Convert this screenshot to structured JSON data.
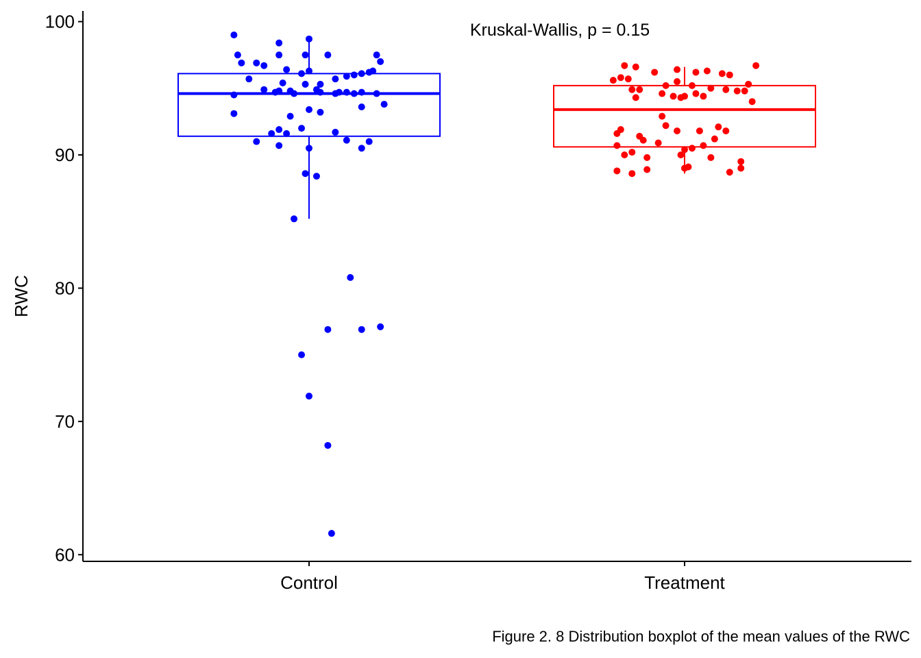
{
  "chart_data": {
    "type": "boxplot",
    "ylabel": "RWC",
    "xlabel": "",
    "ylim": [
      59.5,
      100.8
    ],
    "yticks": [
      60,
      70,
      80,
      90,
      100
    ],
    "categories": [
      "Control",
      "Treatment"
    ],
    "annotation": "Kruskal-Wallis, p = 0.15",
    "legend": "none",
    "grid": false,
    "groups": [
      {
        "name": "Control",
        "color": "#0000FF",
        "box": {
          "lower_whisker": 85.2,
          "q1": 91.4,
          "median": 94.6,
          "q3": 96.1,
          "upper_whisker": 98.7
        },
        "points": [
          [
            -0.2,
            99.0
          ],
          [
            -0.08,
            98.4
          ],
          [
            0.0,
            98.7
          ],
          [
            -0.19,
            97.5
          ],
          [
            -0.08,
            97.5
          ],
          [
            -0.01,
            97.5
          ],
          [
            0.05,
            97.5
          ],
          [
            0.18,
            97.5
          ],
          [
            0.19,
            97.0
          ],
          [
            -0.18,
            96.9
          ],
          [
            -0.14,
            96.9
          ],
          [
            -0.12,
            96.7
          ],
          [
            -0.06,
            96.4
          ],
          [
            -0.02,
            96.1
          ],
          [
            0.0,
            96.3
          ],
          [
            0.1,
            95.9
          ],
          [
            0.12,
            96.0
          ],
          [
            0.14,
            96.1
          ],
          [
            0.16,
            96.2
          ],
          [
            0.17,
            96.3
          ],
          [
            -0.16,
            95.7
          ],
          [
            -0.07,
            95.4
          ],
          [
            -0.01,
            95.3
          ],
          [
            0.03,
            95.3
          ],
          [
            0.07,
            95.7
          ],
          [
            -0.12,
            94.9
          ],
          [
            -0.09,
            94.7
          ],
          [
            -0.08,
            94.8
          ],
          [
            -0.05,
            94.8
          ],
          [
            -0.04,
            94.6
          ],
          [
            0.02,
            94.9
          ],
          [
            0.03,
            94.7
          ],
          [
            0.07,
            94.6
          ],
          [
            0.08,
            94.7
          ],
          [
            0.1,
            94.7
          ],
          [
            0.12,
            94.6
          ],
          [
            0.14,
            94.7
          ],
          [
            0.18,
            94.6
          ],
          [
            -0.2,
            94.5
          ],
          [
            0.0,
            93.4
          ],
          [
            0.03,
            93.2
          ],
          [
            0.14,
            93.6
          ],
          [
            0.2,
            93.8
          ],
          [
            -0.2,
            93.1
          ],
          [
            -0.05,
            92.9
          ],
          [
            -0.08,
            91.9
          ],
          [
            -0.06,
            91.6
          ],
          [
            -0.02,
            92.0
          ],
          [
            0.07,
            91.7
          ],
          [
            -0.1,
            91.6
          ],
          [
            -0.14,
            91.0
          ],
          [
            -0.08,
            90.7
          ],
          [
            0.1,
            91.1
          ],
          [
            0.16,
            91.0
          ],
          [
            0.0,
            90.5
          ],
          [
            0.14,
            90.5
          ],
          [
            -0.01,
            88.6
          ],
          [
            0.02,
            88.4
          ],
          [
            -0.04,
            85.2
          ],
          [
            0.11,
            80.8
          ],
          [
            0.05,
            76.9
          ],
          [
            0.14,
            76.9
          ],
          [
            0.19,
            77.1
          ],
          [
            -0.02,
            75.0
          ],
          [
            0.0,
            71.9
          ],
          [
            0.05,
            68.2
          ],
          [
            0.06,
            61.6
          ]
        ]
      },
      {
        "name": "Treatment",
        "color": "#FF0000",
        "box": {
          "lower_whisker": 88.6,
          "q1": 90.6,
          "median": 93.4,
          "q3": 95.2,
          "upper_whisker": 96.6
        },
        "points": [
          [
            -0.16,
            96.7
          ],
          [
            -0.13,
            96.6
          ],
          [
            -0.08,
            96.2
          ],
          [
            -0.02,
            96.4
          ],
          [
            0.03,
            96.2
          ],
          [
            0.06,
            96.3
          ],
          [
            0.1,
            96.1
          ],
          [
            0.12,
            96.0
          ],
          [
            0.19,
            96.7
          ],
          [
            -0.17,
            95.8
          ],
          [
            -0.19,
            95.6
          ],
          [
            -0.15,
            95.7
          ],
          [
            -0.05,
            95.2
          ],
          [
            -0.02,
            95.5
          ],
          [
            0.02,
            95.2
          ],
          [
            0.07,
            95.0
          ],
          [
            0.11,
            94.9
          ],
          [
            0.14,
            94.8
          ],
          [
            0.16,
            94.8
          ],
          [
            0.17,
            95.3
          ],
          [
            -0.14,
            94.9
          ],
          [
            -0.12,
            94.9
          ],
          [
            -0.06,
            94.6
          ],
          [
            -0.03,
            94.4
          ],
          [
            -0.01,
            94.3
          ],
          [
            0.0,
            94.4
          ],
          [
            0.03,
            94.6
          ],
          [
            0.05,
            94.4
          ],
          [
            -0.13,
            94.3
          ],
          [
            0.18,
            94.0
          ],
          [
            -0.06,
            92.9
          ],
          [
            -0.05,
            92.2
          ],
          [
            -0.02,
            91.8
          ],
          [
            0.04,
            91.8
          ],
          [
            0.09,
            92.1
          ],
          [
            0.11,
            91.8
          ],
          [
            0.08,
            91.2
          ],
          [
            -0.17,
            91.9
          ],
          [
            -0.18,
            91.6
          ],
          [
            -0.12,
            91.4
          ],
          [
            -0.11,
            91.1
          ],
          [
            -0.18,
            90.7
          ],
          [
            -0.07,
            90.9
          ],
          [
            0.02,
            90.5
          ],
          [
            0.05,
            90.7
          ],
          [
            0.0,
            90.4
          ],
          [
            -0.01,
            90.0
          ],
          [
            -0.14,
            90.2
          ],
          [
            -0.16,
            90.0
          ],
          [
            -0.1,
            89.8
          ],
          [
            0.07,
            89.8
          ],
          [
            0.15,
            89.5
          ],
          [
            0.0,
            89.0
          ],
          [
            0.01,
            89.1
          ],
          [
            0.15,
            89.0
          ],
          [
            -0.1,
            88.9
          ],
          [
            -0.14,
            88.6
          ],
          [
            -0.18,
            88.8
          ],
          [
            0.12,
            88.7
          ]
        ]
      }
    ]
  },
  "caption": "Figure 2. 8 Distribution boxplot of the mean values of the RWC"
}
